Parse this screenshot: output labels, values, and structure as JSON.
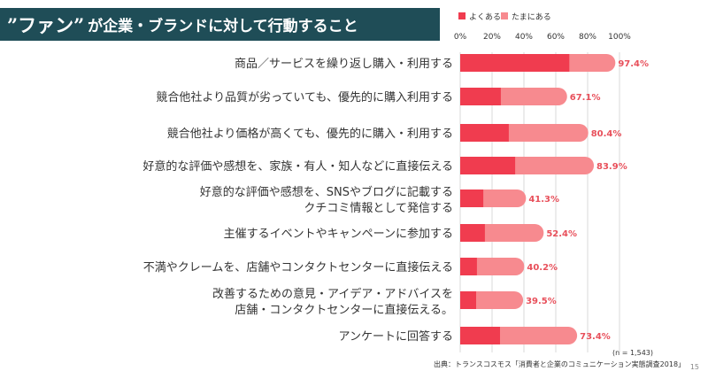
{
  "slide": {
    "title_fan": "”ファン”",
    "title_rest": "が企業・ブランドに対して行動すること",
    "sample_note": "(n = 1,543)",
    "source_note": "出典：トランスコスモス「消費者と企業のコミュニケーション実態調査2018」",
    "page_number": "15"
  },
  "chart_data": {
    "type": "bar",
    "orientation": "horizontal",
    "stacked": true,
    "legend": [
      "よくある",
      "たまにある"
    ],
    "x_ticks": [
      "0%",
      "20%",
      "40%",
      "60%",
      "80%",
      "100%"
    ],
    "xlim": [
      0,
      100
    ],
    "categories": [
      [
        "商品／サービスを繰り返し購入・利用する"
      ],
      [
        "競合他社より品質が劣っていても、優先的に購入利用する"
      ],
      [
        "競合他社より価格が高くても、優先的に購入・利用する"
      ],
      [
        "好意的な評価や感想を、家族・有人・知人などに直接伝える"
      ],
      [
        "好意的な評価や感想を、SNSやブログに記載する",
        "クチコミ情報として発信する"
      ],
      [
        "主催するイベントやキャンペーンに参加する"
      ],
      [
        "不満やクレームを、店舗やコンタクトセンターに直接伝える"
      ],
      [
        "改善するための意見・アイデア・アドバイスを",
        "店舗・コンタクトセンターに直接伝える。"
      ],
      [
        "アンケートに回答する"
      ]
    ],
    "series": [
      {
        "name": "よくある",
        "values": [
          68.5,
          25.5,
          30.5,
          34.5,
          14.5,
          15.5,
          10.5,
          10.0,
          25.0
        ]
      },
      {
        "name": "たまにある",
        "values": [
          28.9,
          41.6,
          49.9,
          49.4,
          26.8,
          36.9,
          29.7,
          29.5,
          48.4
        ]
      }
    ],
    "totals": [
      "97.4%",
      "67.1%",
      "80.4%",
      "83.9%",
      "41.3%",
      "52.4%",
      "40.2%",
      "39.5%",
      "73.4%"
    ],
    "colors": {
      "often": "#f03c4f",
      "sometimes": "#f78a8f",
      "label": "#e8505b",
      "grid": "#d9d9d9"
    }
  }
}
